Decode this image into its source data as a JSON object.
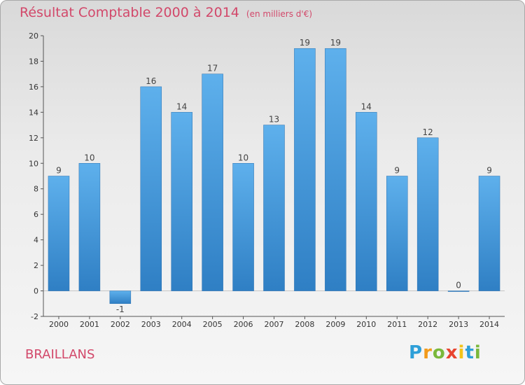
{
  "chart_data": {
    "type": "bar",
    "title": "Résultat Comptable 2000 à 2014",
    "subtitle": "(en milliers d'€)",
    "categories": [
      "2000",
      "2001",
      "2002",
      "2003",
      "2004",
      "2005",
      "2006",
      "2007",
      "2008",
      "2009",
      "2010",
      "2011",
      "2012",
      "2013",
      "2014"
    ],
    "values": [
      9,
      10,
      -1,
      16,
      14,
      17,
      10,
      13,
      19,
      19,
      14,
      9,
      12,
      0,
      9
    ],
    "ylim": [
      -2,
      20
    ],
    "yticks": [
      -2,
      0,
      2,
      4,
      6,
      8,
      10,
      12,
      14,
      16,
      18,
      20
    ],
    "grid": false,
    "bar_color": "#3a8fd8"
  },
  "footer": {
    "place": "BRAILLANS",
    "logo_letters": [
      "P",
      "r",
      "o",
      "x",
      "i",
      "t",
      "i"
    ],
    "logo_colors": [
      "#2e9fd8",
      "#f29a1a",
      "#7ab83b",
      "#e8442f",
      "#f2c31a",
      "#2e9fd8",
      "#7ab83b"
    ]
  }
}
